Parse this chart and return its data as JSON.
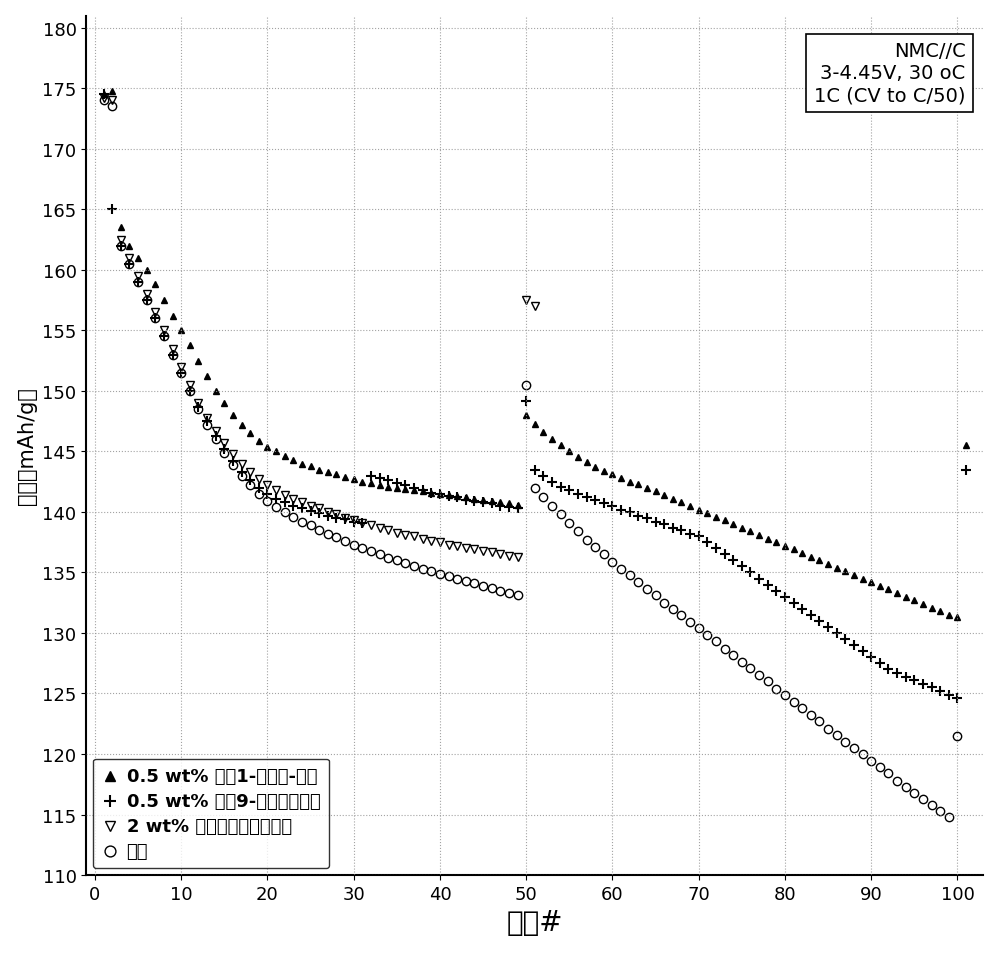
{
  "title_annotation": "NMC//C\n3-4.45V, 30 oC\n1C (CV to C/50)",
  "xlabel": "循环#",
  "ylabel": "容量（mAh/g）",
  "xlim": [
    -1,
    103
  ],
  "ylim": [
    110,
    181
  ],
  "xticks": [
    0,
    10,
    20,
    30,
    40,
    50,
    60,
    70,
    80,
    90,
    100
  ],
  "yticks": [
    110,
    115,
    120,
    125,
    130,
    135,
    140,
    145,
    150,
    155,
    160,
    165,
    170,
    175,
    180
  ],
  "series": {
    "tri_filled": {
      "label": "0.5 wt% 聚（1-十六烯-砒）",
      "marker": "^",
      "color": "black",
      "fillstyle": "full",
      "markersize": 5,
      "x": [
        1,
        2,
        3,
        4,
        5,
        6,
        7,
        8,
        9,
        10,
        11,
        12,
        13,
        14,
        15,
        16,
        17,
        18,
        19,
        20,
        21,
        22,
        23,
        24,
        25,
        26,
        27,
        28,
        29,
        30,
        31,
        32,
        33,
        34,
        35,
        36,
        37,
        38,
        39,
        40,
        41,
        42,
        43,
        44,
        45,
        46,
        47,
        48,
        49,
        50,
        51,
        52,
        53,
        54,
        55,
        56,
        57,
        58,
        59,
        60,
        61,
        62,
        63,
        64,
        65,
        66,
        67,
        68,
        69,
        70,
        71,
        72,
        73,
        74,
        75,
        76,
        77,
        78,
        79,
        80,
        81,
        82,
        83,
        84,
        85,
        86,
        87,
        88,
        89,
        90,
        91,
        92,
        93,
        94,
        95,
        96,
        97,
        98,
        99,
        100,
        101
      ],
      "y": [
        174.5,
        174.8,
        163.5,
        162.0,
        161.0,
        160.0,
        158.8,
        157.5,
        156.2,
        155.0,
        153.8,
        152.5,
        151.2,
        150.0,
        149.0,
        148.0,
        147.2,
        146.5,
        145.9,
        145.4,
        145.0,
        144.6,
        144.3,
        144.0,
        143.8,
        143.5,
        143.3,
        143.1,
        142.9,
        142.7,
        142.5,
        142.4,
        142.2,
        142.1,
        142.0,
        141.9,
        141.8,
        141.7,
        141.6,
        141.5,
        141.4,
        141.3,
        141.2,
        141.1,
        141.0,
        140.9,
        140.8,
        140.7,
        140.6,
        148.0,
        147.3,
        146.6,
        146.0,
        145.5,
        145.0,
        144.5,
        144.1,
        143.7,
        143.4,
        143.1,
        142.8,
        142.5,
        142.3,
        142.0,
        141.7,
        141.4,
        141.1,
        140.8,
        140.5,
        140.2,
        139.9,
        139.6,
        139.3,
        139.0,
        138.7,
        138.4,
        138.1,
        137.8,
        137.5,
        137.2,
        136.9,
        136.6,
        136.3,
        136.0,
        135.7,
        135.4,
        135.1,
        134.8,
        134.5,
        134.2,
        133.9,
        133.6,
        133.3,
        133.0,
        132.7,
        132.4,
        132.1,
        131.8,
        131.5,
        131.3,
        145.5
      ]
    },
    "plus": {
      "label": "0.5 wt% 聚（9-乙烯基咋唑）",
      "marker": "+",
      "color": "black",
      "fillstyle": "full",
      "markersize": 7,
      "markeredgewidth": 1.5,
      "x": [
        1,
        2,
        3,
        4,
        5,
        6,
        7,
        8,
        9,
        10,
        11,
        12,
        13,
        14,
        15,
        16,
        17,
        18,
        19,
        20,
        21,
        22,
        23,
        24,
        25,
        26,
        27,
        28,
        29,
        30,
        31,
        32,
        33,
        34,
        35,
        36,
        37,
        38,
        39,
        40,
        41,
        42,
        43,
        44,
        45,
        46,
        47,
        48,
        49,
        50,
        51,
        52,
        53,
        54,
        55,
        56,
        57,
        58,
        59,
        60,
        61,
        62,
        63,
        64,
        65,
        66,
        67,
        68,
        69,
        70,
        71,
        72,
        73,
        74,
        75,
        76,
        77,
        78,
        79,
        80,
        81,
        82,
        83,
        84,
        85,
        86,
        87,
        88,
        89,
        90,
        91,
        92,
        93,
        94,
        95,
        96,
        97,
        98,
        99,
        100,
        101
      ],
      "y": [
        174.5,
        165.0,
        162.0,
        160.5,
        159.0,
        157.5,
        156.0,
        154.5,
        153.0,
        151.5,
        150.0,
        148.7,
        147.5,
        146.3,
        145.2,
        144.2,
        143.3,
        142.6,
        142.0,
        141.5,
        141.1,
        140.8,
        140.5,
        140.3,
        140.1,
        139.9,
        139.7,
        139.5,
        139.4,
        139.2,
        139.1,
        143.0,
        142.8,
        142.6,
        142.4,
        142.2,
        142.0,
        141.8,
        141.6,
        141.5,
        141.3,
        141.2,
        141.0,
        140.9,
        140.8,
        140.7,
        140.5,
        140.4,
        140.3,
        149.2,
        143.5,
        143.0,
        142.5,
        142.1,
        141.8,
        141.5,
        141.2,
        141.0,
        140.7,
        140.5,
        140.2,
        140.0,
        139.7,
        139.5,
        139.2,
        139.0,
        138.7,
        138.5,
        138.2,
        138.0,
        137.5,
        137.0,
        136.5,
        136.0,
        135.5,
        135.0,
        134.5,
        134.0,
        133.5,
        133.0,
        132.5,
        132.0,
        131.5,
        131.0,
        130.5,
        130.0,
        129.5,
        129.0,
        128.5,
        128.0,
        127.5,
        127.0,
        126.7,
        126.4,
        126.1,
        125.8,
        125.5,
        125.2,
        124.9,
        124.6,
        143.5
      ]
    },
    "tri_open": {
      "label": "2 wt% 聚（六氟环氧丙烷）",
      "marker": "v",
      "color": "black",
      "fillstyle": "none",
      "markersize": 6,
      "x": [
        1,
        2,
        3,
        4,
        5,
        6,
        7,
        8,
        9,
        10,
        11,
        12,
        13,
        14,
        15,
        16,
        17,
        18,
        19,
        20,
        21,
        22,
        23,
        24,
        25,
        26,
        27,
        28,
        29,
        30,
        31,
        32,
        33,
        34,
        35,
        36,
        37,
        38,
        39,
        40,
        41,
        42,
        43,
        44,
        45,
        46,
        47,
        48,
        49,
        50,
        51
      ],
      "y": [
        174.2,
        174.0,
        162.5,
        161.0,
        159.5,
        158.0,
        156.5,
        155.0,
        153.5,
        152.0,
        150.5,
        149.0,
        147.8,
        146.7,
        145.7,
        144.8,
        144.0,
        143.3,
        142.7,
        142.2,
        141.8,
        141.4,
        141.1,
        140.8,
        140.5,
        140.3,
        140.0,
        139.8,
        139.5,
        139.3,
        139.1,
        138.9,
        138.7,
        138.5,
        138.3,
        138.1,
        138.0,
        137.8,
        137.6,
        137.5,
        137.3,
        137.2,
        137.0,
        136.9,
        136.8,
        136.7,
        136.5,
        136.4,
        136.3,
        157.5,
        157.0
      ]
    },
    "circle": {
      "label": "对照",
      "marker": "o",
      "color": "black",
      "fillstyle": "none",
      "markersize": 6,
      "x": [
        1,
        2,
        3,
        4,
        5,
        6,
        7,
        8,
        9,
        10,
        11,
        12,
        13,
        14,
        15,
        16,
        17,
        18,
        19,
        20,
        21,
        22,
        23,
        24,
        25,
        26,
        27,
        28,
        29,
        30,
        31,
        32,
        33,
        34,
        35,
        36,
        37,
        38,
        39,
        40,
        41,
        42,
        43,
        44,
        45,
        46,
        47,
        48,
        49,
        50,
        51,
        52,
        53,
        54,
        55,
        56,
        57,
        58,
        59,
        60,
        61,
        62,
        63,
        64,
        65,
        66,
        67,
        68,
        69,
        70,
        71,
        72,
        73,
        74,
        75,
        76,
        77,
        78,
        79,
        80,
        81,
        82,
        83,
        84,
        85,
        86,
        87,
        88,
        89,
        90,
        91,
        92,
        93,
        94,
        95,
        96,
        97,
        98,
        99,
        100
      ],
      "y": [
        174.0,
        173.5,
        162.0,
        160.5,
        159.0,
        157.5,
        156.0,
        154.5,
        153.0,
        151.5,
        150.0,
        148.5,
        147.2,
        146.0,
        144.9,
        143.9,
        143.0,
        142.2,
        141.5,
        140.9,
        140.4,
        140.0,
        139.6,
        139.2,
        138.9,
        138.5,
        138.2,
        137.9,
        137.6,
        137.3,
        137.0,
        136.8,
        136.5,
        136.2,
        136.0,
        135.8,
        135.5,
        135.3,
        135.1,
        134.9,
        134.7,
        134.5,
        134.3,
        134.1,
        133.9,
        133.7,
        133.5,
        133.3,
        133.1,
        150.5,
        142.0,
        141.2,
        140.5,
        139.8,
        139.1,
        138.4,
        137.7,
        137.1,
        136.5,
        135.9,
        135.3,
        134.8,
        134.2,
        133.6,
        133.1,
        132.5,
        132.0,
        131.5,
        130.9,
        130.4,
        129.8,
        129.3,
        128.7,
        128.2,
        127.6,
        127.1,
        126.5,
        126.0,
        125.4,
        124.9,
        124.3,
        123.8,
        123.2,
        122.7,
        122.1,
        121.6,
        121.0,
        120.5,
        120.0,
        119.4,
        118.9,
        118.4,
        117.8,
        117.3,
        116.8,
        116.3,
        115.8,
        115.3,
        114.8,
        121.5
      ]
    }
  },
  "bg_color": "#ffffff",
  "grid_color": "#999999",
  "legend_loc": "lower left"
}
